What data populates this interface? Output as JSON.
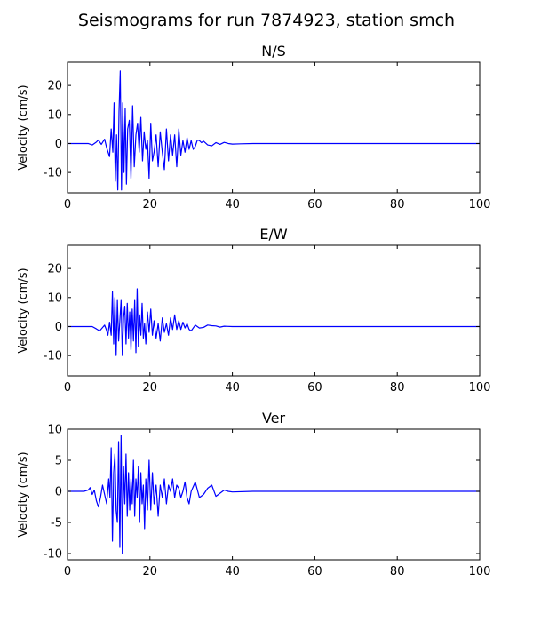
{
  "figure": {
    "title": "Seismograms for run 7874923, station smch"
  },
  "chart_data": [
    {
      "type": "line",
      "title": "N/S",
      "xlabel": "",
      "ylabel": "Velocity (cm/s)",
      "xlim": [
        0,
        100
      ],
      "ylim": [
        -17,
        28
      ],
      "xticks": [
        0,
        20,
        40,
        60,
        80,
        100
      ],
      "yticks": [
        -10,
        0,
        10,
        20
      ],
      "color": "#0000ff",
      "series": [
        {
          "x": [
            0,
            5,
            6,
            7,
            7.5,
            8.2,
            9,
            9.5,
            10.2,
            10.6,
            11,
            11.3,
            11.6,
            11.9,
            12.2,
            12.5,
            12.8,
            13.1,
            13.4,
            13.7,
            14,
            14.3,
            14.6,
            15,
            15.4,
            15.8,
            16.2,
            16.6,
            17,
            17.4,
            17.8,
            18.2,
            18.6,
            19,
            19.4,
            19.8,
            20.2,
            20.6,
            21,
            21.5,
            22,
            22.5,
            23,
            23.5,
            24,
            24.5,
            25,
            25.5,
            26,
            26.5,
            27,
            27.5,
            28,
            28.5,
            29,
            29.5,
            30,
            30.5,
            31,
            31.5,
            32,
            32.5,
            33,
            34,
            35,
            36,
            37,
            38,
            39,
            40,
            42,
            45,
            100
          ],
          "y": [
            0,
            0,
            -0.5,
            0.5,
            1.2,
            -0.3,
            1.5,
            -1.5,
            -4.5,
            5,
            -3,
            14,
            -13,
            3,
            -16,
            11,
            25,
            -16,
            14,
            -10,
            12,
            -14,
            5,
            8,
            -12,
            13,
            -8,
            3,
            7,
            -3,
            9,
            -6,
            4,
            -2,
            1,
            -12,
            7,
            -6,
            -3,
            3,
            -8,
            4,
            -3,
            -9,
            5,
            -6,
            3,
            -4,
            3,
            -8,
            5,
            -4,
            1,
            -3,
            2,
            -2,
            1,
            -2,
            -1,
            1.2,
            1,
            0.3,
            0.8,
            -0.5,
            -0.8,
            0.3,
            -0.3,
            0.4,
            0,
            -0.2,
            -0.1,
            0,
            0
          ]
        }
      ]
    },
    {
      "type": "line",
      "title": "E/W",
      "xlabel": "",
      "ylabel": "Velocity (cm/s)",
      "xlim": [
        0,
        100
      ],
      "ylim": [
        -17,
        28
      ],
      "xticks": [
        0,
        20,
        40,
        60,
        80,
        100
      ],
      "yticks": [
        -10,
        0,
        10,
        20
      ],
      "color": "#0000ff",
      "series": [
        {
          "x": [
            0,
            5,
            6,
            7,
            7.8,
            8.4,
            9,
            9.4,
            9.8,
            10.2,
            10.6,
            10.9,
            11.2,
            11.5,
            11.8,
            12.1,
            12.4,
            12.7,
            13,
            13.3,
            13.6,
            13.9,
            14.2,
            14.5,
            14.8,
            15.1,
            15.4,
            15.7,
            16,
            16.3,
            16.6,
            16.9,
            17.2,
            17.5,
            17.8,
            18.1,
            18.4,
            18.7,
            19,
            19.4,
            19.8,
            20.2,
            20.6,
            21,
            21.5,
            22,
            22.5,
            23,
            23.5,
            24,
            24.5,
            25,
            25.5,
            26,
            26.5,
            27,
            27.5,
            28,
            28.5,
            29,
            29.5,
            30,
            31,
            32,
            33,
            34,
            35,
            36,
            37,
            38,
            40,
            45,
            100
          ],
          "y": [
            0,
            0,
            0,
            -0.8,
            -1.5,
            -0.5,
            0.5,
            -1,
            -3,
            1.5,
            -3,
            12,
            -6,
            10,
            -10,
            9,
            -5,
            2,
            9,
            -10,
            3,
            7,
            -6,
            8,
            -4,
            5,
            -8,
            6,
            -5,
            9,
            -9,
            13,
            -7,
            4,
            -3,
            8,
            -4,
            1,
            -6,
            5,
            -2,
            6,
            -3,
            2,
            -4,
            1,
            -5,
            3,
            -2,
            1,
            -3,
            3,
            -1,
            4,
            -1,
            2,
            -1,
            1.5,
            -0.5,
            1,
            -1,
            -1.5,
            0.5,
            -0.5,
            -0.3,
            0.5,
            0.3,
            0.2,
            -0.2,
            0.1,
            0,
            0,
            0
          ]
        }
      ]
    },
    {
      "type": "line",
      "title": "Ver",
      "xlabel": "",
      "ylabel": "Velocity (cm/s)",
      "xlim": [
        0,
        100
      ],
      "ylim": [
        -11,
        10
      ],
      "xticks": [
        0,
        20,
        40,
        60,
        80,
        100
      ],
      "yticks": [
        -10,
        -5,
        0,
        5,
        10
      ],
      "color": "#0000ff",
      "series": [
        {
          "x": [
            0,
            4,
            5,
            5.5,
            6,
            6.5,
            7,
            7.5,
            8,
            8.5,
            9,
            9.5,
            10,
            10.3,
            10.6,
            10.9,
            11.2,
            11.5,
            11.8,
            12.1,
            12.4,
            12.7,
            13,
            13.3,
            13.6,
            13.9,
            14.2,
            14.5,
            14.8,
            15.1,
            15.4,
            15.7,
            16,
            16.3,
            16.6,
            16.9,
            17.2,
            17.5,
            17.8,
            18.1,
            18.4,
            18.7,
            19,
            19.4,
            19.8,
            20.2,
            20.6,
            21,
            21.5,
            22,
            22.5,
            23,
            23.5,
            24,
            24.5,
            25,
            25.5,
            26,
            26.5,
            27,
            27.5,
            28,
            28.5,
            29,
            29.5,
            30,
            31,
            32,
            33,
            34,
            35,
            36,
            37,
            38,
            39,
            40,
            45,
            100
          ],
          "y": [
            0,
            0,
            0.2,
            0.6,
            -0.5,
            0.2,
            -1.5,
            -2.5,
            -1,
            1,
            -0.5,
            -2,
            2,
            -1,
            7,
            -8,
            3,
            6,
            -3,
            -5,
            8,
            -9,
            9,
            -10,
            4,
            -2,
            6,
            -4,
            3,
            -3,
            2,
            -2,
            5,
            -4,
            2,
            -1,
            4,
            -5,
            3,
            -2,
            1,
            -6,
            2,
            -3,
            5,
            -3,
            3,
            -2,
            1,
            -4,
            1,
            -1,
            2,
            -2,
            1,
            0,
            2,
            -1,
            1,
            0.5,
            -1,
            0,
            1.5,
            -1,
            -2,
            0,
            1.5,
            -1,
            -0.5,
            0.5,
            1,
            -0.8,
            -0.3,
            0.2,
            0,
            -0.1,
            0,
            0
          ]
        }
      ]
    }
  ]
}
